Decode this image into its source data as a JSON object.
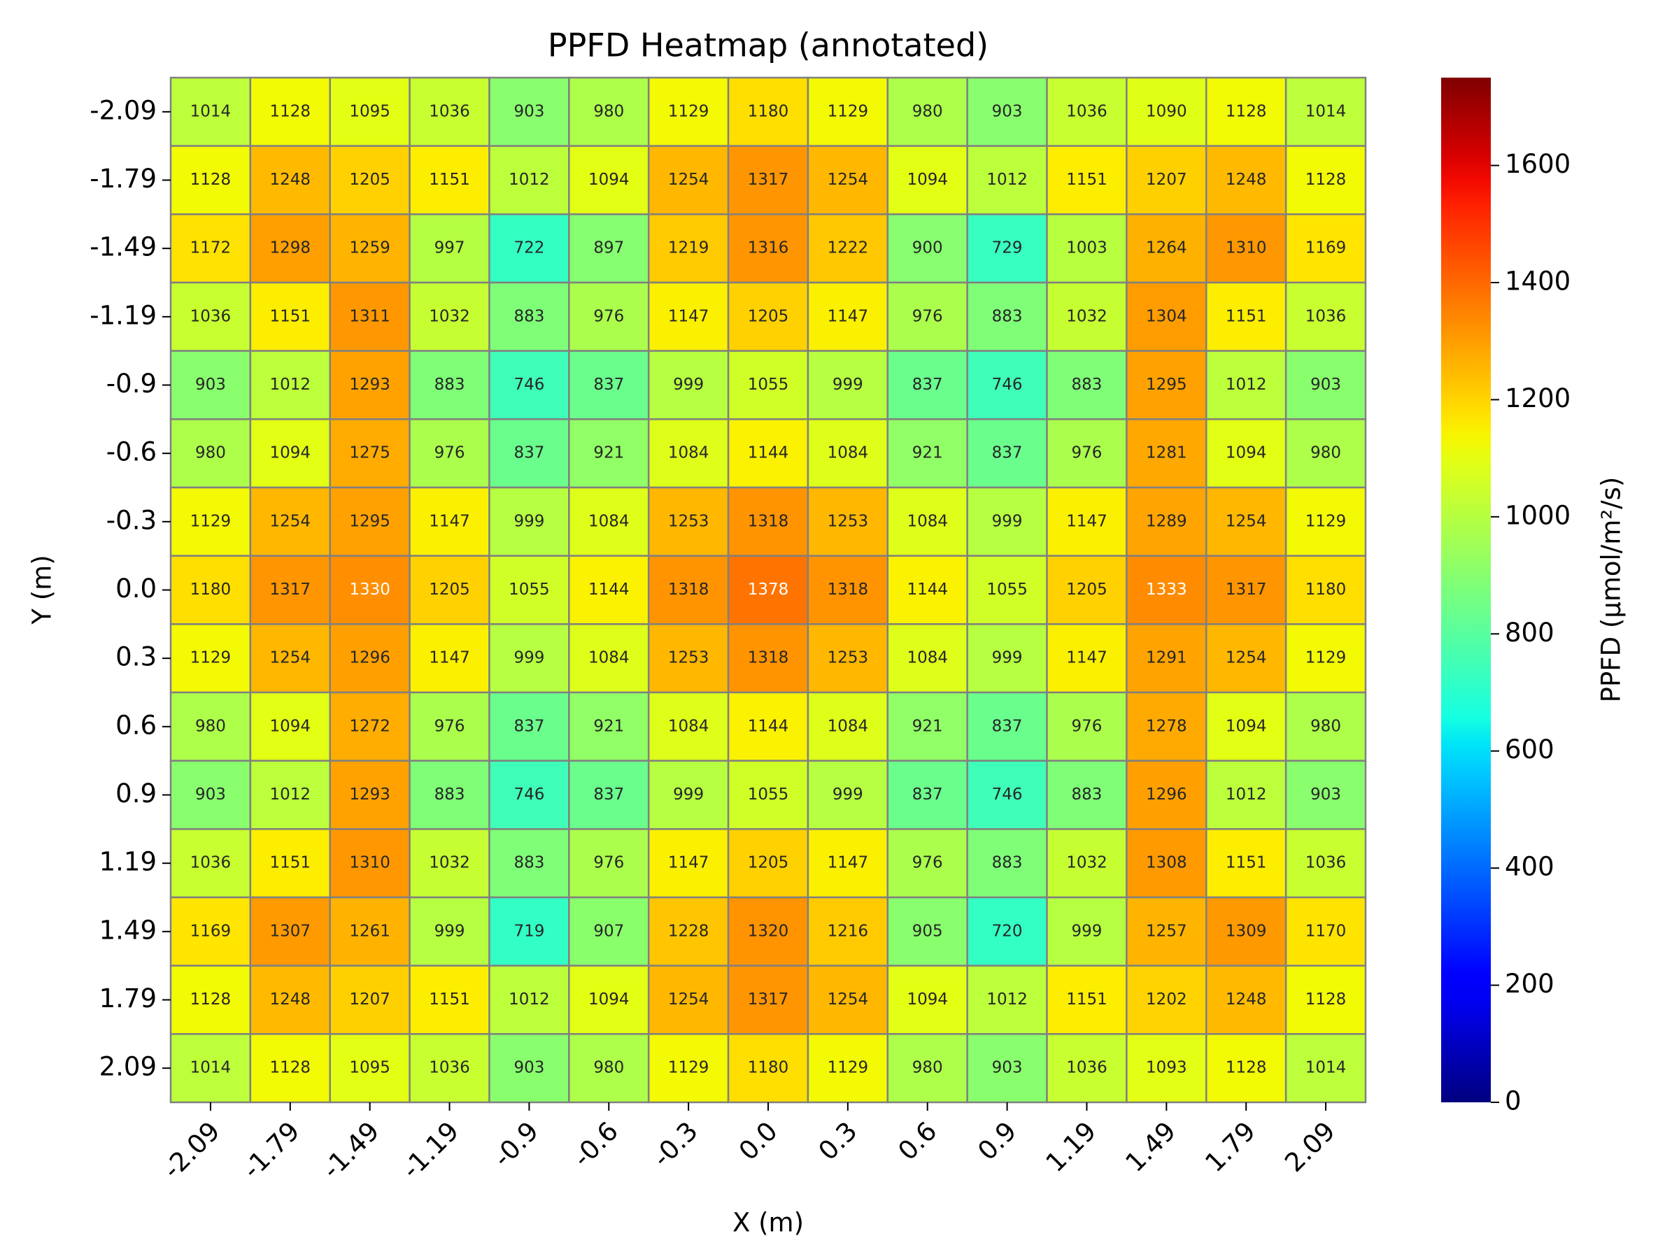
{
  "chart_data": {
    "type": "heatmap",
    "title": "PPFD Heatmap (annotated)",
    "x_label": "X (m)",
    "y_label": "Y (m)",
    "x_categories": [
      "-2.09",
      "-1.79",
      "-1.49",
      "-1.19",
      "-0.9",
      "-0.6",
      "-0.3",
      "0.0",
      "0.3",
      "0.6",
      "0.9",
      "1.19",
      "1.49",
      "1.79",
      "2.09"
    ],
    "y_categories": [
      "-2.09",
      "-1.79",
      "-1.49",
      "-1.19",
      "-0.9",
      "-0.6",
      "-0.3",
      "0.0",
      "0.3",
      "0.6",
      "0.9",
      "1.19",
      "1.49",
      "1.79",
      "2.09"
    ],
    "z": [
      [
        1014,
        1128,
        1095,
        1036,
        903,
        980,
        1129,
        1180,
        1129,
        980,
        903,
        1036,
        1090,
        1128,
        1014
      ],
      [
        1128,
        1248,
        1205,
        1151,
        1012,
        1094,
        1254,
        1317,
        1254,
        1094,
        1012,
        1151,
        1207,
        1248,
        1128
      ],
      [
        1172,
        1298,
        1259,
        997,
        722,
        897,
        1219,
        1316,
        1222,
        900,
        729,
        1003,
        1264,
        1310,
        1169
      ],
      [
        1036,
        1151,
        1311,
        1032,
        883,
        976,
        1147,
        1205,
        1147,
        976,
        883,
        1032,
        1304,
        1151,
        1036
      ],
      [
        903,
        1012,
        1293,
        883,
        746,
        837,
        999,
        1055,
        999,
        837,
        746,
        883,
        1295,
        1012,
        903
      ],
      [
        980,
        1094,
        1275,
        976,
        837,
        921,
        1084,
        1144,
        1084,
        921,
        837,
        976,
        1281,
        1094,
        980
      ],
      [
        1129,
        1254,
        1295,
        1147,
        999,
        1084,
        1253,
        1318,
        1253,
        1084,
        999,
        1147,
        1289,
        1254,
        1129
      ],
      [
        1180,
        1317,
        1330,
        1205,
        1055,
        1144,
        1318,
        1378,
        1318,
        1144,
        1055,
        1205,
        1333,
        1317,
        1180
      ],
      [
        1129,
        1254,
        1296,
        1147,
        999,
        1084,
        1253,
        1318,
        1253,
        1084,
        999,
        1147,
        1291,
        1254,
        1129
      ],
      [
        980,
        1094,
        1272,
        976,
        837,
        921,
        1084,
        1144,
        1084,
        921,
        837,
        976,
        1278,
        1094,
        980
      ],
      [
        903,
        1012,
        1293,
        883,
        746,
        837,
        999,
        1055,
        999,
        837,
        746,
        883,
        1296,
        1012,
        903
      ],
      [
        1036,
        1151,
        1310,
        1032,
        883,
        976,
        1147,
        1205,
        1147,
        976,
        883,
        1032,
        1308,
        1151,
        1036
      ],
      [
        1169,
        1307,
        1261,
        999,
        719,
        907,
        1228,
        1320,
        1216,
        905,
        720,
        999,
        1257,
        1309,
        1170
      ],
      [
        1128,
        1248,
        1207,
        1151,
        1012,
        1094,
        1254,
        1317,
        1254,
        1094,
        1012,
        1151,
        1202,
        1248,
        1128
      ],
      [
        1014,
        1128,
        1095,
        1036,
        903,
        980,
        1129,
        1180,
        1129,
        980,
        903,
        1036,
        1093,
        1128,
        1014
      ]
    ],
    "colormap": "jet",
    "clim": [
      0,
      1750
    ],
    "colorbar_ticks": [
      0,
      200,
      400,
      600,
      800,
      1000,
      1200,
      1400,
      1600
    ],
    "colorbar_label": "PPFD (µmol/m²/s)",
    "cell_border_color": "#808080"
  }
}
